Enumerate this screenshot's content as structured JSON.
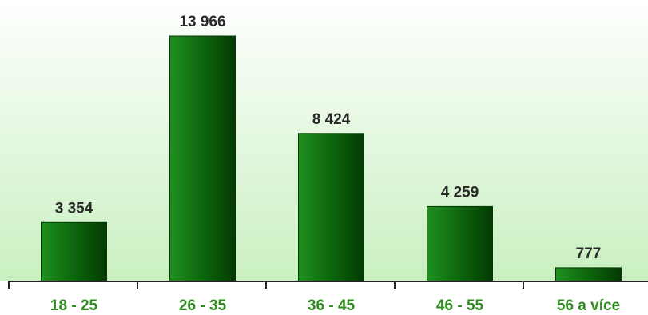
{
  "chart_data": {
    "type": "bar",
    "categories": [
      "18 - 25",
      "26 - 35",
      "36 - 45",
      "46 - 55",
      "56 a více"
    ],
    "values": [
      3354,
      13966,
      8424,
      4259,
      777
    ],
    "value_labels": [
      "3 354",
      "13 966",
      "8 424",
      "4 259",
      "777"
    ],
    "ylim": [
      0,
      14000
    ],
    "grid": false,
    "legend": "none",
    "colors": {
      "bar_light": "#1f8f1f",
      "bar_mid": "#0f6a0f",
      "bar_dark": "#033a03",
      "background_top": "#ffffff",
      "background_bottom": "#c9f0c0",
      "axis": "#222222",
      "tick_label": "#2e8b1e",
      "value_label": "#2a2a2a"
    }
  }
}
